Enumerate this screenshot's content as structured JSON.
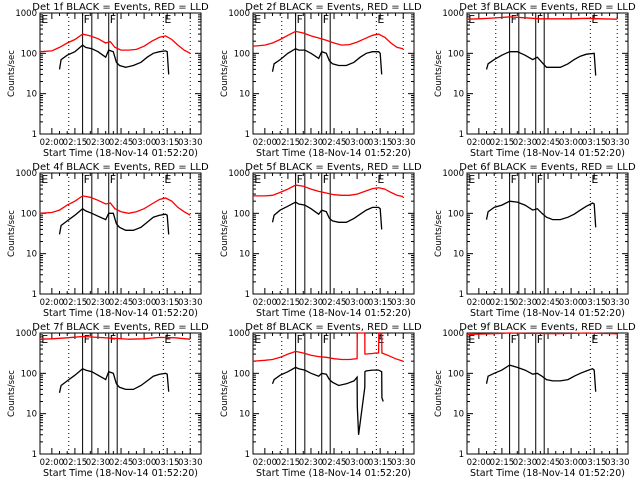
{
  "chart_data": {
    "type": "line",
    "layout": "3x3 grid of panels",
    "common": {
      "xlabel": "Start Time (18-Nov-14 01:52:20)",
      "ylabel": "Counts/sec",
      "yscale": "log",
      "ylim": [
        1,
        1000
      ],
      "y_ticks": [
        1,
        10,
        100,
        1000
      ],
      "y_tick_labels": [
        "1",
        "10",
        "100",
        "1000"
      ],
      "x_range_minutes_after_0200": [
        -7.7,
        97
      ],
      "x_ticks_minutes_after_0200": [
        0,
        15,
        30,
        45,
        60,
        75,
        90
      ],
      "x_tick_labels": [
        "02:00",
        "02:15",
        "02:30",
        "02:45",
        "03:00",
        "03:15",
        "03:30"
      ],
      "legend": "in title: BLACK = Events, RED = LLD",
      "dotted_lines_minutes": [
        11,
        72.5,
        90
      ],
      "solid_lines_minutes": [
        20,
        26,
        37,
        42.5
      ],
      "markers": [
        {
          "label": "E",
          "minutes": -7.5
        },
        {
          "label": "F",
          "minutes": 20
        },
        {
          "label": "F",
          "minutes": 37
        },
        {
          "label": "E",
          "minutes": 72.5
        }
      ]
    },
    "panels": [
      {
        "title": "Det 1f BLACK = Events, RED = LLD",
        "series": [
          {
            "name": "LLD",
            "color": "#ff0000",
            "x": [
              -7.7,
              0,
              5,
              10,
              15,
              20,
              25,
              30,
              35,
              38,
              41,
              45,
              50,
              55,
              60,
              65,
              70,
              74,
              78,
              82,
              86,
              90
            ],
            "y": [
              110,
              115,
              140,
              180,
              220,
              300,
              270,
              230,
              180,
              195,
              140,
              120,
              120,
              125,
              150,
              200,
              250,
              270,
              220,
              160,
              120,
              100
            ]
          },
          {
            "name": "Events",
            "color": "#000000",
            "x": [
              5,
              6,
              10,
              15,
              20,
              22,
              26,
              30,
              35,
              37,
              40,
              42,
              44,
              48,
              53,
              58,
              62,
              66,
              70,
              74,
              75,
              76
            ],
            "y": [
              40,
              70,
              90,
              110,
              160,
              140,
              130,
              110,
              80,
              120,
              110,
              60,
              50,
              45,
              50,
              60,
              80,
              100,
              110,
              115,
              110,
              30
            ]
          }
        ]
      },
      {
        "title": "Det 2f BLACK = Events, RED = LLD",
        "series": [
          {
            "name": "LLD",
            "color": "#ff0000",
            "x": [
              -7.7,
              0,
              5,
              10,
              15,
              20,
              25,
              30,
              35,
              40,
              45,
              50,
              55,
              60,
              65,
              70,
              74,
              78,
              82,
              86,
              90
            ],
            "y": [
              150,
              160,
              180,
              220,
              280,
              350,
              320,
              270,
              240,
              210,
              180,
              160,
              165,
              190,
              230,
              280,
              300,
              250,
              180,
              140,
              130
            ]
          },
          {
            "name": "Events",
            "color": "#000000",
            "x": [
              5,
              6,
              10,
              15,
              20,
              22,
              26,
              30,
              35,
              37,
              40,
              42,
              44,
              48,
              53,
              58,
              62,
              66,
              70,
              74,
              75,
              76
            ],
            "y": [
              35,
              55,
              70,
              100,
              130,
              120,
              120,
              100,
              75,
              110,
              100,
              65,
              55,
              50,
              50,
              60,
              80,
              100,
              110,
              110,
              100,
              30
            ]
          }
        ]
      },
      {
        "title": "Det 3f BLACK = Events, RED = LLD",
        "series": [
          {
            "name": "LLD",
            "color": "#ff0000",
            "x": [
              -7.7,
              0,
              10,
              20,
              30,
              40,
              50,
              60,
              70,
              80,
              90
            ],
            "y": [
              700,
              720,
              750,
              800,
              760,
              720,
              720,
              720,
              740,
              720,
              700
            ]
          },
          {
            "name": "Events",
            "color": "#000000",
            "x": [
              5,
              6,
              10,
              15,
              20,
              25,
              30,
              35,
              38,
              41,
              44,
              48,
              53,
              58,
              62,
              66,
              70,
              75,
              76
            ],
            "y": [
              40,
              55,
              70,
              90,
              110,
              110,
              90,
              70,
              80,
              60,
              45,
              45,
              45,
              55,
              70,
              85,
              95,
              100,
              28
            ]
          }
        ]
      },
      {
        "title": "Det 4f BLACK = Events, RED = LLD",
        "series": [
          {
            "name": "LLD",
            "color": "#ff0000",
            "x": [
              -7.7,
              0,
              5,
              10,
              15,
              20,
              25,
              30,
              35,
              38,
              41,
              45,
              50,
              55,
              60,
              65,
              70,
              74,
              78,
              82,
              86,
              90
            ],
            "y": [
              100,
              105,
              120,
              160,
              200,
              270,
              250,
              210,
              170,
              180,
              130,
              110,
              100,
              110,
              130,
              170,
              220,
              240,
              200,
              140,
              110,
              90
            ]
          },
          {
            "name": "Events",
            "color": "#000000",
            "x": [
              5,
              6,
              10,
              15,
              20,
              22,
              26,
              30,
              35,
              37,
              40,
              42,
              44,
              48,
              53,
              58,
              62,
              66,
              70,
              74,
              75,
              76
            ],
            "y": [
              30,
              50,
              65,
              90,
              130,
              115,
              100,
              85,
              70,
              100,
              100,
              55,
              45,
              38,
              38,
              45,
              60,
              80,
              90,
              95,
              90,
              30
            ]
          }
        ]
      },
      {
        "title": "Det 5f BLACK = Events, RED = LLD",
        "series": [
          {
            "name": "LLD",
            "color": "#ff0000",
            "x": [
              -7.7,
              0,
              5,
              10,
              15,
              20,
              25,
              30,
              35,
              40,
              45,
              50,
              55,
              60,
              65,
              70,
              74,
              78,
              82,
              86,
              90
            ],
            "y": [
              270,
              270,
              280,
              330,
              400,
              500,
              470,
              400,
              350,
              320,
              290,
              280,
              280,
              300,
              350,
              410,
              430,
              400,
              330,
              280,
              260
            ]
          },
          {
            "name": "Events",
            "color": "#000000",
            "x": [
              5,
              6,
              10,
              15,
              20,
              22,
              26,
              30,
              35,
              37,
              40,
              42,
              44,
              48,
              53,
              58,
              62,
              66,
              70,
              74,
              75,
              76
            ],
            "y": [
              60,
              90,
              120,
              150,
              190,
              170,
              160,
              130,
              95,
              120,
              110,
              75,
              65,
              60,
              60,
              75,
              95,
              120,
              140,
              140,
              130,
              40
            ]
          }
        ]
      },
      {
        "title": "Det 6f BLACK = Events, RED = LLD",
        "series": [
          {
            "name": "Events",
            "color": "#000000",
            "x": [
              5,
              6,
              10,
              15,
              20,
              25,
              30,
              35,
              38,
              41,
              44,
              48,
              53,
              58,
              62,
              66,
              70,
              74,
              75,
              76
            ],
            "y": [
              70,
              110,
              140,
              160,
              200,
              190,
              160,
              120,
              130,
              100,
              80,
              70,
              70,
              80,
              95,
              120,
              150,
              180,
              170,
              45
            ]
          }
        ]
      },
      {
        "title": "Det 7f BLACK = Events, RED = LLD",
        "series": [
          {
            "name": "LLD",
            "color": "#ff0000",
            "x": [
              -7.7,
              0,
              10,
              20,
              30,
              40,
              50,
              60,
              70,
              80,
              90
            ],
            "y": [
              700,
              720,
              760,
              820,
              780,
              740,
              700,
              720,
              780,
              760,
              700
            ]
          },
          {
            "name": "Events",
            "color": "#000000",
            "x": [
              5,
              6,
              10,
              15,
              20,
              22,
              26,
              30,
              35,
              37,
              40,
              42,
              44,
              48,
              53,
              58,
              62,
              66,
              70,
              74,
              75,
              76
            ],
            "y": [
              33,
              50,
              65,
              90,
              130,
              120,
              110,
              90,
              70,
              110,
              100,
              55,
              45,
              40,
              40,
              50,
              65,
              85,
              95,
              100,
              95,
              35
            ]
          }
        ]
      },
      {
        "title": "Det 8f BLACK = Events, RED = LLD",
        "series": [
          {
            "name": "LLD",
            "color": "#ff0000",
            "x": [
              -7.7,
              0,
              5,
              10,
              15,
              20,
              25,
              30,
              35,
              40,
              45,
              50,
              55,
              60,
              60.1,
              65,
              65.1,
              70,
              72,
              74,
              74.1,
              76,
              76.1,
              80,
              85,
              90
            ],
            "y": [
              200,
              210,
              220,
              250,
              300,
              350,
              320,
              280,
              260,
              250,
              230,
              220,
              220,
              230,
              1000,
              1000,
              300,
              310,
              320,
              320,
              1000,
              1000,
              320,
              280,
              230,
              200
            ]
          },
          {
            "name": "Events",
            "color": "#000000",
            "x": [
              5,
              6,
              10,
              15,
              20,
              22,
              26,
              30,
              35,
              37,
              40,
              42,
              44,
              48,
              53,
              58,
              60,
              60.1,
              61,
              65,
              65.1,
              66,
              70,
              74,
              76,
              76.1,
              77
            ],
            "y": [
              55,
              70,
              90,
              110,
              140,
              130,
              120,
              100,
              85,
              100,
              95,
              70,
              60,
              50,
              55,
              65,
              80,
              15,
              3,
              45,
              110,
              115,
              120,
              120,
              110,
              25,
              20
            ]
          }
        ]
      },
      {
        "title": "Det 9f BLACK = Events, RED = LLD",
        "series": [
          {
            "name": "LLD",
            "color": "#ff0000",
            "x": [
              -7.7,
              0,
              10,
              20,
              30,
              40,
              50,
              60,
              70,
              80,
              90
            ],
            "y": [
              920,
              940,
              960,
              1000,
              980,
              970,
              960,
              980,
              1000,
              980,
              950
            ]
          },
          {
            "name": "Events",
            "color": "#000000",
            "x": [
              5,
              6,
              10,
              15,
              20,
              25,
              30,
              35,
              38,
              41,
              44,
              48,
              53,
              58,
              62,
              66,
              70,
              74,
              75,
              76
            ],
            "y": [
              55,
              85,
              100,
              120,
              160,
              140,
              120,
              95,
              100,
              85,
              70,
              65,
              65,
              70,
              85,
              100,
              115,
              130,
              120,
              35
            ]
          }
        ]
      }
    ]
  }
}
